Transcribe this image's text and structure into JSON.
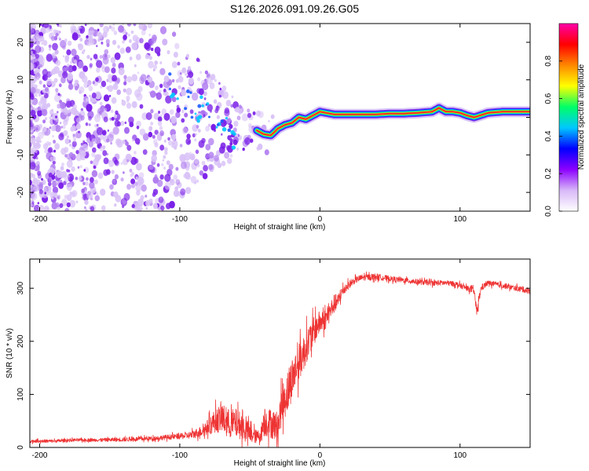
{
  "title": "S126.2026.091.09.26.G05",
  "colors": {
    "snr_line": "#ee3333",
    "scatter_light": "#d9c2f7",
    "scatter_mid": "#b27ff0",
    "scatter_dark": "#7a1fe8",
    "axis": "#000000"
  },
  "chart_data": [
    {
      "type": "heatmap",
      "name": "spectrogram",
      "xlabel": "Height of straight line (km)",
      "ylabel": "Frequency (Hz)",
      "xlim": [
        -207,
        150
      ],
      "ylim": [
        -25,
        25
      ],
      "xticks": [
        -200,
        -100,
        0,
        100
      ],
      "xtick_labels": [
        "-200",
        "-100",
        "0",
        "100"
      ],
      "yticks": [
        -20,
        -10,
        0,
        10,
        20
      ],
      "ytick_labels": [
        "-20",
        "-10",
        "0",
        "10",
        "20"
      ],
      "colorbar": {
        "label": "Normalized spectral amplitude",
        "range": [
          0,
          1
        ],
        "ticks": [
          0.0,
          0.2,
          0.4,
          0.6,
          0.8
        ],
        "tick_labels": [
          "0.0",
          "0.2",
          "0.4",
          "0.6",
          "0.8"
        ],
        "stops": [
          "#ffffff",
          "#d8b8f8",
          "#8c00ff",
          "#0000ff",
          "#00c8ff",
          "#00ff66",
          "#ffff00",
          "#ff8800",
          "#ff0000",
          "#ff00aa"
        ]
      },
      "ridge": {
        "x": [
          -45,
          -40,
          -35,
          -30,
          -25,
          -20,
          -15,
          -10,
          -5,
          0,
          10,
          20,
          30,
          40,
          50,
          60,
          70,
          80,
          85,
          90,
          95,
          100,
          105,
          110,
          120,
          130,
          140,
          150
        ],
        "y": [
          -3.5,
          -4.5,
          -4.8,
          -3.0,
          -2.0,
          -1.5,
          0.0,
          -0.5,
          0.5,
          1.5,
          0.8,
          0.8,
          0.8,
          0.8,
          1.0,
          1.0,
          1.2,
          1.5,
          2.5,
          1.5,
          1.5,
          1.2,
          0.5,
          0.0,
          1.2,
          1.5,
          1.5,
          1.5
        ],
        "peak_value": 0.95
      }
    },
    {
      "type": "line",
      "name": "snr",
      "xlabel": "Height of straight line (km)",
      "ylabel": "SNR (10 * v/v)",
      "xlim": [
        -207,
        150
      ],
      "ylim": [
        0,
        355
      ],
      "xticks": [
        -200,
        -100,
        0,
        100
      ],
      "xtick_labels": [
        "-200",
        "-100",
        "0",
        "100"
      ],
      "yticks": [
        0,
        100,
        200,
        300
      ],
      "ytick_labels": [
        "0",
        "100",
        "200",
        "300"
      ],
      "series": [
        {
          "name": "SNR",
          "x": [
            -207,
            -190,
            -175,
            -160,
            -140,
            -120,
            -105,
            -95,
            -90,
            -85,
            -80,
            -75,
            -70,
            -65,
            -60,
            -55,
            -50,
            -45,
            -42,
            -40,
            -35,
            -30,
            -27,
            -25,
            -22,
            -20,
            -17,
            -15,
            -12,
            -10,
            -7,
            -5,
            -2,
            0,
            3,
            5,
            8,
            10,
            13,
            15,
            18,
            20,
            25,
            30,
            40,
            50,
            60,
            70,
            80,
            90,
            97,
            100,
            105,
            110,
            112,
            115,
            120,
            130,
            140,
            150
          ],
          "y": [
            12,
            12,
            14,
            14,
            15,
            17,
            20,
            22,
            25,
            30,
            38,
            50,
            55,
            45,
            45,
            40,
            25,
            20,
            25,
            50,
            45,
            40,
            80,
            95,
            110,
            130,
            150,
            160,
            175,
            190,
            205,
            215,
            230,
            235,
            240,
            245,
            260,
            270,
            275,
            290,
            300,
            305,
            315,
            320,
            322,
            318,
            315,
            312,
            310,
            310,
            308,
            305,
            300,
            295,
            255,
            300,
            310,
            305,
            300,
            295
          ],
          "noise": [
            3,
            3,
            3,
            3,
            4,
            4,
            5,
            6,
            8,
            10,
            15,
            22,
            28,
            28,
            28,
            25,
            18,
            12,
            15,
            30,
            28,
            28,
            35,
            40,
            40,
            40,
            35,
            35,
            35,
            32,
            30,
            28,
            25,
            22,
            20,
            20,
            18,
            18,
            15,
            12,
            10,
            8,
            6,
            6,
            6,
            5,
            5,
            5,
            5,
            5,
            5,
            5,
            5,
            6,
            10,
            6,
            5,
            5,
            5,
            6
          ]
        }
      ]
    }
  ]
}
